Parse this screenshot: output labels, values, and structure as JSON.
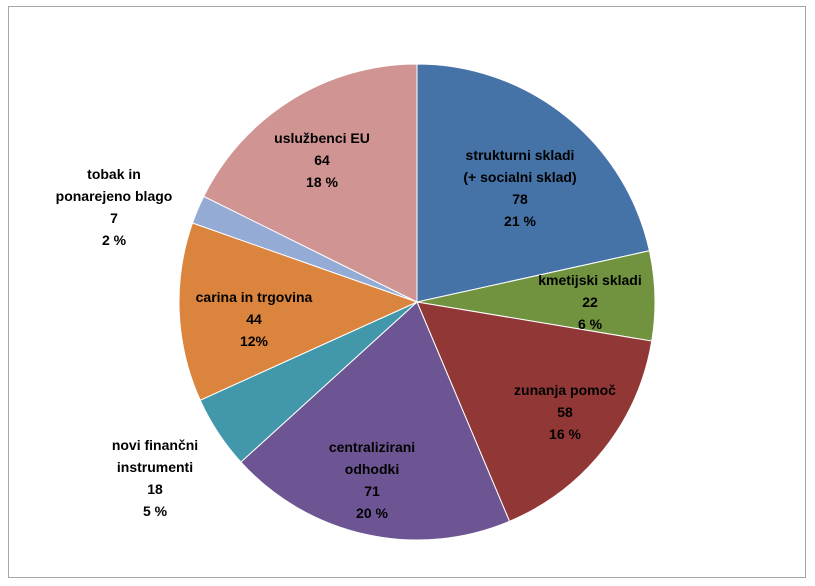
{
  "chart_data": {
    "type": "pie",
    "title": "",
    "start_angle_deg": 0,
    "direction": "clockwise",
    "slices": [
      {
        "label_lines": [
          "strukturni skladi",
          "(+ socialni sklad)"
        ],
        "value": 78,
        "percent_label": "21 %",
        "color": "#4572a7"
      },
      {
        "label_lines": [
          "kmetijski skladi"
        ],
        "value": 22,
        "percent_label": "6 %",
        "color": "#71923f"
      },
      {
        "label_lines": [
          "zunanja pomoč"
        ],
        "value": 58,
        "percent_label": "16 %",
        "color": "#913837"
      },
      {
        "label_lines": [
          "centralizirani",
          "odhodki"
        ],
        "value": 71,
        "percent_label": "20 %",
        "color": "#6c5592"
      },
      {
        "label_lines": [
          "novi finančni",
          "instrumenti"
        ],
        "value": 18,
        "percent_label": "5 %",
        "color": "#4397ab"
      },
      {
        "label_lines": [
          "carina in trgovina"
        ],
        "value": 44,
        "percent_label": "12%",
        "color": "#db843d"
      },
      {
        "label_lines": [
          "tobak in",
          "ponarejeno blago"
        ],
        "value": 7,
        "percent_label": "2 %",
        "color": "#94abd6"
      },
      {
        "label_lines": [
          "uslužbenci EU"
        ],
        "value": 64,
        "percent_label": "18 %",
        "color": "#d09493"
      }
    ]
  }
}
